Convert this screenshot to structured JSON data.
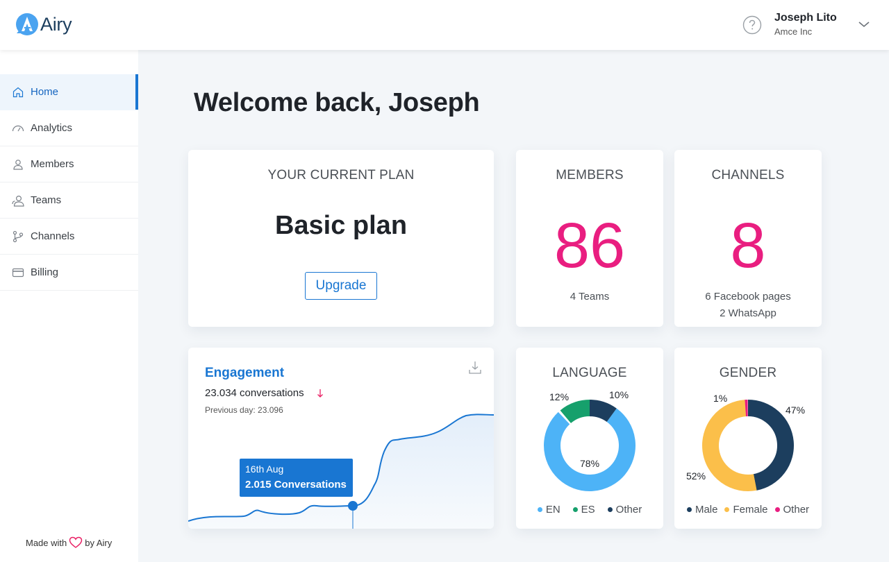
{
  "app": {
    "name": "Airy"
  },
  "user": {
    "name": "Joseph Lito",
    "org": "Amce Inc"
  },
  "sidebar": {
    "items": [
      {
        "label": "Home",
        "icon": "home-icon",
        "active": true
      },
      {
        "label": "Analytics",
        "icon": "gauge-icon"
      },
      {
        "label": "Members",
        "icon": "user-icon"
      },
      {
        "label": "Teams",
        "icon": "team-icon"
      },
      {
        "label": "Channels",
        "icon": "branch-icon"
      },
      {
        "label": "Billing",
        "icon": "card-icon"
      }
    ],
    "footer": {
      "prefix": "Made with",
      "suffix": "by Airy"
    }
  },
  "main": {
    "title": "Welcome back, Joseph",
    "plan": {
      "heading": "YOUR CURRENT PLAN",
      "name": "Basic plan",
      "button": "Upgrade"
    },
    "members": {
      "heading": "MEMBERS",
      "count": "86",
      "sub": "4 Teams"
    },
    "channels": {
      "heading": "CHANNELS",
      "count": "8",
      "sub1": "6 Facebook pages",
      "sub2": "2 WhatsApp"
    },
    "engagement": {
      "title": "Engagement",
      "count": "23.034 conversations",
      "previous": "Previous day: 23.096",
      "tooltip_date": "16th Aug",
      "tooltip_value": "2.015 Conversations"
    },
    "language": {
      "heading": "LANGUAGE",
      "labels": {
        "en": "78%",
        "es": "12%",
        "other": "10%"
      },
      "legend": [
        "EN",
        "ES",
        "Other"
      ]
    },
    "gender": {
      "heading": "GENDER",
      "labels": {
        "male": "47%",
        "female": "52%",
        "other": "1%"
      },
      "legend": [
        "Male",
        "Female",
        "Other"
      ]
    }
  },
  "colors": {
    "accent": "#1976d2",
    "pink": "#e91e80",
    "lang_en": "#4db3f7",
    "lang_es": "#16a06c",
    "lang_other": "#1c3e5e",
    "male": "#1c3e5e",
    "female": "#fbbf4a",
    "gender_other": "#e91e80"
  },
  "chart_data": [
    {
      "type": "pie",
      "title": "LANGUAGE",
      "categories": [
        "EN",
        "ES",
        "Other"
      ],
      "values": [
        78,
        12,
        10
      ]
    },
    {
      "type": "pie",
      "title": "GENDER",
      "categories": [
        "Male",
        "Female",
        "Other"
      ],
      "values": [
        47,
        52,
        1
      ]
    }
  ]
}
